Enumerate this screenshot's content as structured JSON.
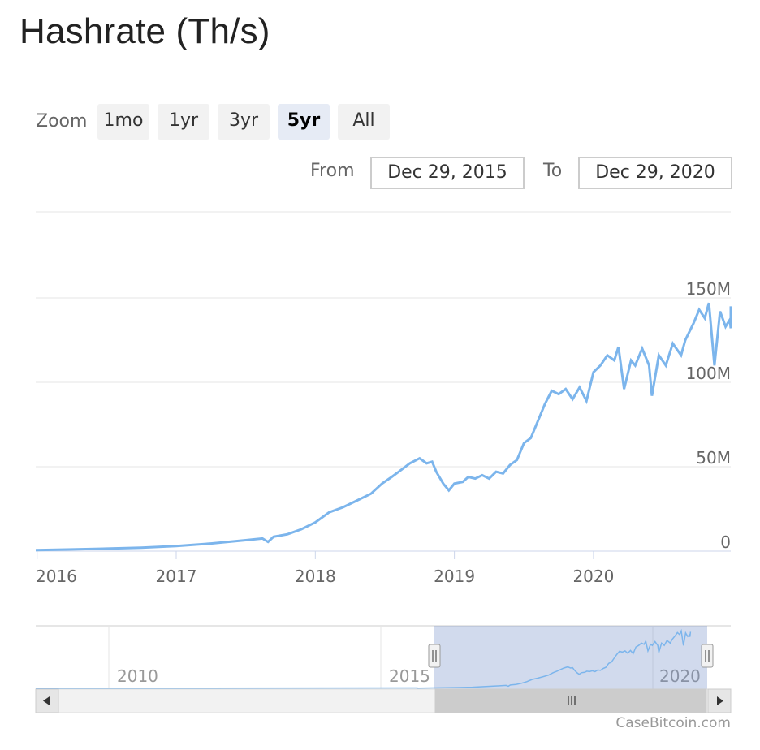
{
  "title": "Hashrate (Th/s)",
  "zoom": {
    "label": "Zoom",
    "buttons": [
      "1mo",
      "1yr",
      "3yr",
      "5yr",
      "All"
    ],
    "active": "5yr"
  },
  "range": {
    "from_label": "From",
    "from_value": "Dec 29, 2015",
    "to_label": "To",
    "to_value": "Dec 29, 2020"
  },
  "credit": "CaseBitcoin.com",
  "colors": {
    "series": "#7cb5ec",
    "grid": "#e6e6e6",
    "navigator_mask": "#6685c2"
  },
  "chart_data": {
    "type": "line",
    "title": "Hashrate (Th/s)",
    "xlabel": "",
    "ylabel": "",
    "x_ticks": [
      "2016",
      "2017",
      "2018",
      "2019",
      "2020"
    ],
    "y_ticks": [
      "0",
      "50M",
      "100M",
      "150M"
    ],
    "ylim": [
      0,
      150000000
    ],
    "xlim": [
      "2015-12-29",
      "2020-12-29"
    ],
    "series": [
      {
        "values": [
          [
            2015.99,
            0.6
          ],
          [
            2016.25,
            1.0
          ],
          [
            2016.5,
            1.5
          ],
          [
            2016.75,
            2.0
          ],
          [
            2017.0,
            3.0
          ],
          [
            2017.25,
            4.5
          ],
          [
            2017.5,
            6.5
          ],
          [
            2017.62,
            7.5
          ],
          [
            2017.66,
            5.5
          ],
          [
            2017.7,
            8.5
          ],
          [
            2017.8,
            10
          ],
          [
            2017.9,
            13
          ],
          [
            2018.0,
            17
          ],
          [
            2018.1,
            23
          ],
          [
            2018.2,
            26
          ],
          [
            2018.3,
            30
          ],
          [
            2018.4,
            34
          ],
          [
            2018.48,
            40
          ],
          [
            2018.55,
            44
          ],
          [
            2018.6,
            47
          ],
          [
            2018.68,
            52
          ],
          [
            2018.75,
            55
          ],
          [
            2018.8,
            52
          ],
          [
            2018.84,
            53
          ],
          [
            2018.87,
            47
          ],
          [
            2018.92,
            40
          ],
          [
            2018.96,
            36
          ],
          [
            2019.0,
            40
          ],
          [
            2019.06,
            41
          ],
          [
            2019.1,
            44
          ],
          [
            2019.15,
            43
          ],
          [
            2019.2,
            45
          ],
          [
            2019.25,
            43
          ],
          [
            2019.3,
            47
          ],
          [
            2019.35,
            46
          ],
          [
            2019.4,
            51
          ],
          [
            2019.45,
            54
          ],
          [
            2019.5,
            64
          ],
          [
            2019.55,
            67
          ],
          [
            2019.6,
            77
          ],
          [
            2019.65,
            87
          ],
          [
            2019.7,
            95
          ],
          [
            2019.75,
            93
          ],
          [
            2019.8,
            96
          ],
          [
            2019.85,
            90
          ],
          [
            2019.9,
            97
          ],
          [
            2019.95,
            89
          ],
          [
            2020.0,
            106
          ],
          [
            2020.05,
            110
          ],
          [
            2020.1,
            116
          ],
          [
            2020.15,
            113
          ],
          [
            2020.18,
            121
          ],
          [
            2020.22,
            96
          ],
          [
            2020.27,
            113
          ],
          [
            2020.3,
            110
          ],
          [
            2020.35,
            120
          ],
          [
            2020.4,
            110
          ],
          [
            2020.42,
            92
          ],
          [
            2020.47,
            116
          ],
          [
            2020.52,
            110
          ],
          [
            2020.57,
            123
          ],
          [
            2020.63,
            116
          ],
          [
            2020.66,
            125
          ],
          [
            2020.72,
            135
          ],
          [
            2020.76,
            143
          ],
          [
            2020.8,
            138
          ],
          [
            2020.83,
            147
          ],
          [
            2020.87,
            110
          ],
          [
            2020.91,
            142
          ],
          [
            2020.95,
            133
          ],
          [
            2020.98,
            137
          ],
          [
            2020.99,
            132
          ],
          [
            2021.0,
            145
          ]
        ]
      }
    ],
    "navigator": {
      "x_ticks": [
        "2010",
        "2015",
        "2020"
      ],
      "selection": [
        "Dec 29, 2015",
        "Dec 29, 2020"
      ]
    }
  }
}
